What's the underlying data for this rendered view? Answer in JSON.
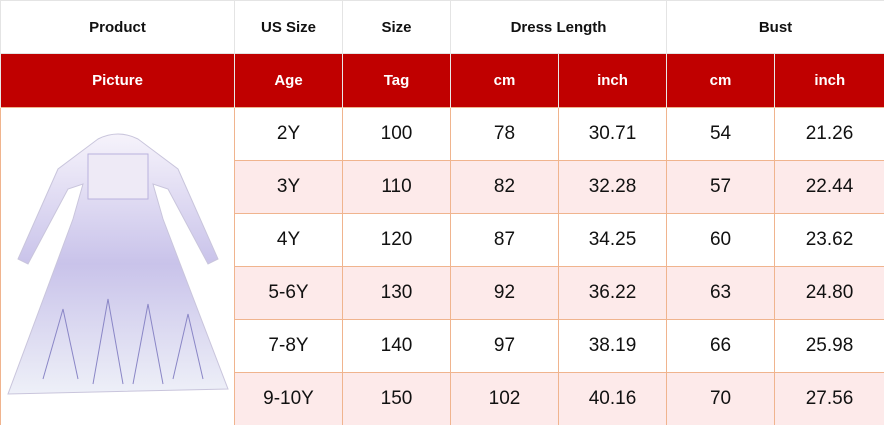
{
  "header": {
    "row1": [
      "Product",
      "US Size",
      "Size",
      "Dress Length",
      "Bust"
    ],
    "row2": [
      "Picture",
      "Age",
      "Tag",
      "cm",
      "inch",
      "cm",
      "inch"
    ]
  },
  "colors": {
    "header_red": "#c00000",
    "alt_row": "#fdeaea",
    "border": "#f0b48e"
  },
  "picture": "white-blue-princess-dress-image",
  "rows": [
    [
      "2Y",
      "100",
      "78",
      "30.71",
      "54",
      "21.26"
    ],
    [
      "3Y",
      "110",
      "82",
      "32.28",
      "57",
      "22.44"
    ],
    [
      "4Y",
      "120",
      "87",
      "34.25",
      "60",
      "23.62"
    ],
    [
      "5-6Y",
      "130",
      "92",
      "36.22",
      "63",
      "24.80"
    ],
    [
      "7-8Y",
      "140",
      "97",
      "38.19",
      "66",
      "25.98"
    ],
    [
      "9-10Y",
      "150",
      "102",
      "40.16",
      "70",
      "27.56"
    ]
  ]
}
